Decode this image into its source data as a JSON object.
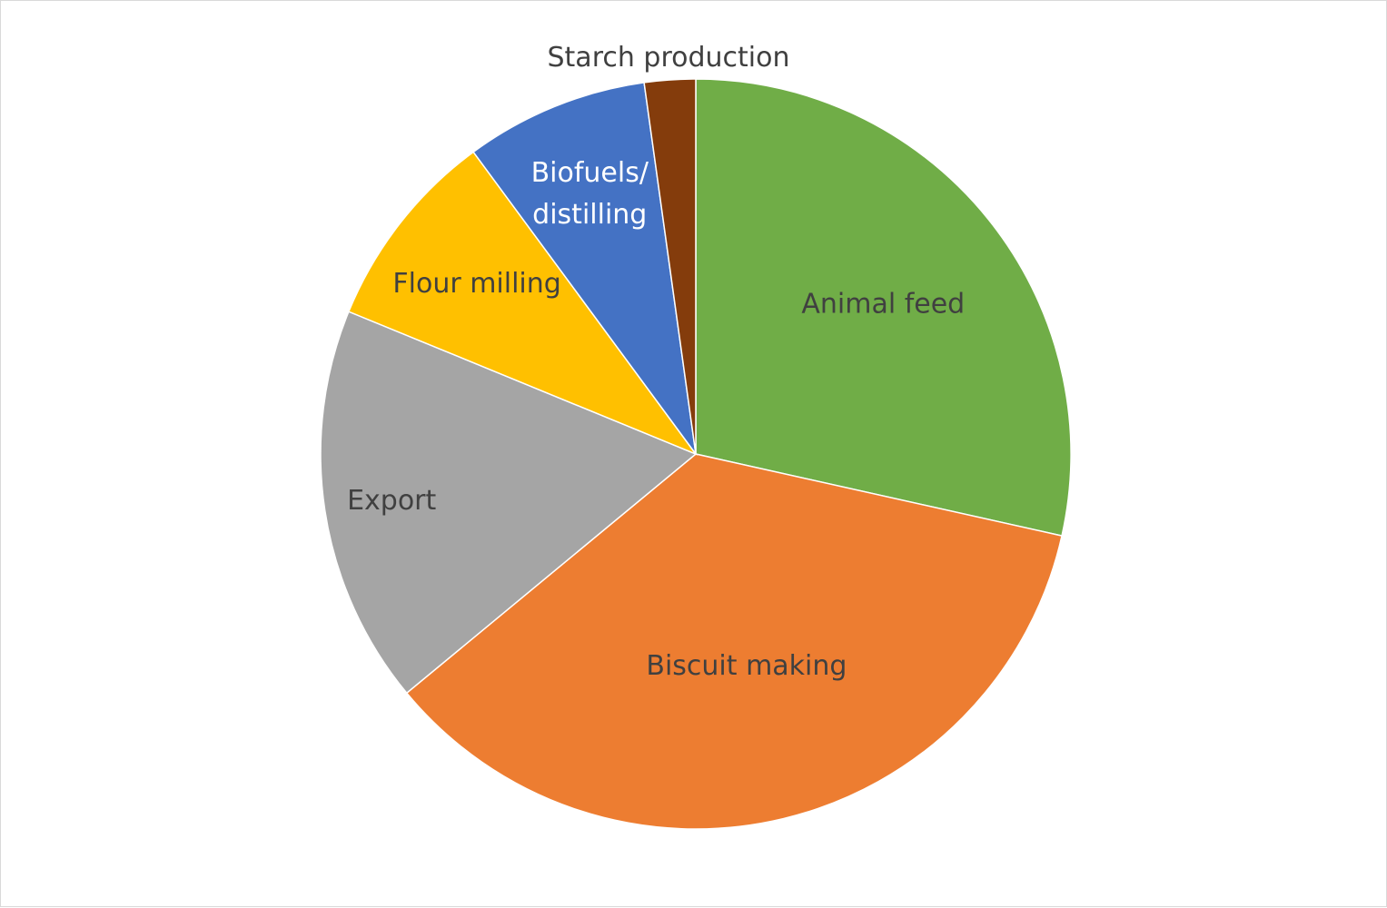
{
  "chart_data": {
    "type": "pie",
    "title": "",
    "start_angle_deg": 0,
    "direction": "clockwise",
    "slices": [
      {
        "label": "Animal feed",
        "value": 28.5,
        "color": "#70AD47",
        "label_color": "#404040"
      },
      {
        "label": "Biscuit making",
        "value": 35.5,
        "color": "#ED7D31",
        "label_color": "#404040"
      },
      {
        "label": "Export",
        "value": 17.2,
        "color": "#A5A5A5",
        "label_color": "#404040"
      },
      {
        "label": "Flour milling",
        "value": 8.7,
        "color": "#FFC000",
        "label_color": "#404040"
      },
      {
        "label": "Biofuels/ distilling",
        "value": 7.9,
        "color": "#4472C4",
        "label_color": "#ffffff"
      },
      {
        "label": "Starch production",
        "value": 2.2,
        "color": "#843C0C",
        "label_color": "#404040"
      }
    ],
    "legend": "none",
    "data_labels": "category-name"
  }
}
